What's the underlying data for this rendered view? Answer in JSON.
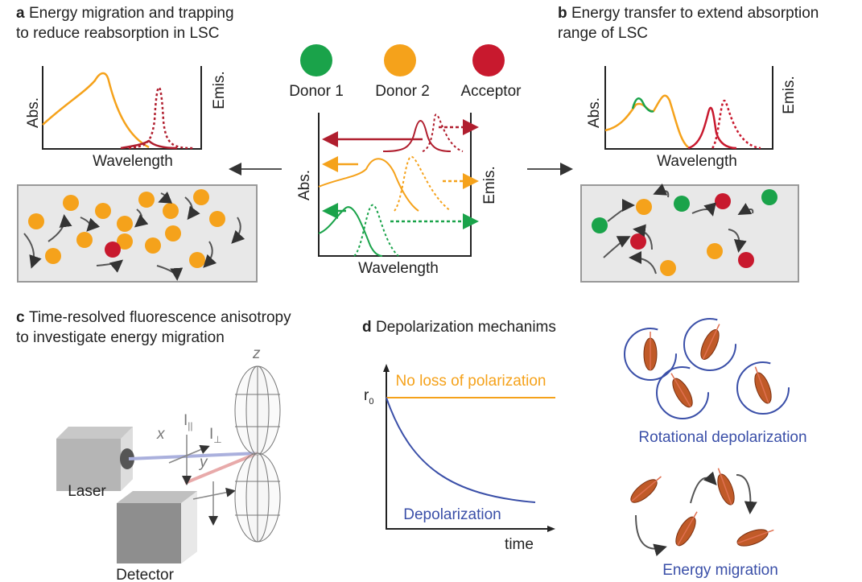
{
  "panel_a": {
    "letter": "a",
    "title": [
      "Energy migration and trapping",
      "to reduce reabsorption in LSC"
    ],
    "y_label": "Abs.",
    "y2_label": "Emis.",
    "x_label": "Wavelength"
  },
  "legend": {
    "donor1": "Donor 1",
    "donor2": "Donor 2",
    "acceptor": "Acceptor"
  },
  "center_plot": {
    "y_label": "Abs.",
    "y2_label": "Emis.",
    "x_label": "Wavelength"
  },
  "panel_b": {
    "letter": "b",
    "title": [
      "Energy transfer to extend absorption",
      "range of LSC"
    ],
    "y_label": "Abs.",
    "y2_label": "Emis.",
    "x_label": "Wavelength"
  },
  "panel_c": {
    "letter": "c",
    "title": [
      "Time-resolved fluorescence anisotropy",
      "to investigate energy migration"
    ],
    "axes": {
      "x": "x",
      "y": "y",
      "z": "z"
    },
    "intensity_parallel": {
      "symbol": "I",
      "subscript": "||"
    },
    "intensity_perpendicular": {
      "symbol": "I",
      "subscript": "⊥"
    },
    "laser": "Laser",
    "detector": "Detector"
  },
  "panel_d": {
    "letter": "d",
    "title": "Depolarization mechanims",
    "no_loss": "No loss of polarization",
    "r0": {
      "symbol": "r",
      "subscript": "0"
    },
    "depolarization": "Depolarization",
    "x_label": "time",
    "rotational": "Rotational depolarization",
    "energy_migration": "Energy migration"
  }
}
